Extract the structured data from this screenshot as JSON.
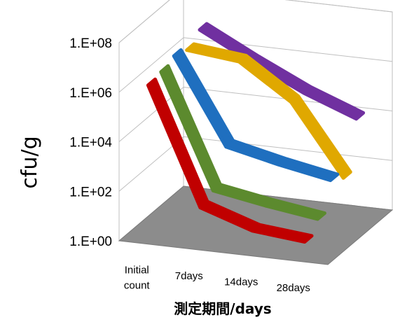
{
  "chart_data": {
    "type": "line",
    "chart_style": "3d-line",
    "categories": [
      "Initial count",
      "7days",
      "14days",
      "28days"
    ],
    "category_lines": [
      [
        "Initial",
        "count"
      ],
      [
        "7days"
      ],
      [
        "14days"
      ],
      [
        "28days"
      ]
    ],
    "y_ticks": [
      "1.E+00",
      "1.E+02",
      "1.E+04",
      "1.E+06",
      "1.E+08"
    ],
    "ylabel": "cfu/g",
    "xlabel": "測定期間/days",
    "y_scale": "log",
    "ylim": [
      1,
      100000000
    ],
    "floor_color": "#8c8c8c",
    "series": [
      {
        "color": "#c00000",
        "values": [
          2000000,
          40,
          8,
          5
        ]
      },
      {
        "color": "#5c8a2e",
        "values": [
          2500000,
          70,
          30,
          15
        ]
      },
      {
        "color": "#1f6fbf",
        "values": [
          4000000,
          1500,
          500,
          200
        ]
      },
      {
        "color": "#e0a800",
        "values": [
          2500000,
          1500000,
          60000,
          90
        ]
      },
      {
        "color": "#7030a0",
        "values": [
          6000000,
          500000,
          50000,
          8000
        ]
      }
    ]
  }
}
